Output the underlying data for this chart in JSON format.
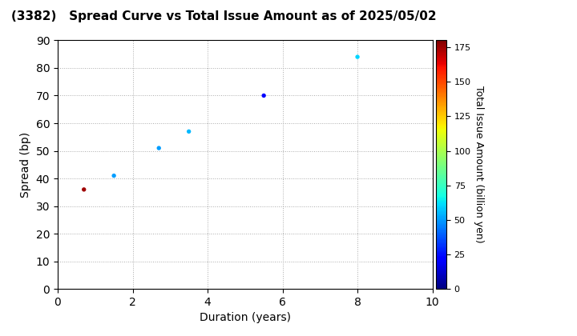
{
  "title": "(3382)   Spread Curve vs Total Issue Amount as of 2025/05/02",
  "xlabel": "Duration (years)",
  "ylabel": "Spread (bp)",
  "colorbar_label": "Total Issue Amount (billion yen)",
  "xlim": [
    0,
    10
  ],
  "ylim": [
    0,
    90
  ],
  "xticks": [
    0,
    2,
    4,
    6,
    8,
    10
  ],
  "yticks": [
    0,
    10,
    20,
    30,
    40,
    50,
    60,
    70,
    80,
    90
  ],
  "colorbar_ticks": [
    0,
    25,
    50,
    75,
    100,
    125,
    150,
    175
  ],
  "colorbar_vmin": 0,
  "colorbar_vmax": 180,
  "points": [
    {
      "duration": 0.7,
      "spread": 36,
      "amount": 175
    },
    {
      "duration": 1.5,
      "spread": 41,
      "amount": 50
    },
    {
      "duration": 2.7,
      "spread": 51,
      "amount": 50
    },
    {
      "duration": 3.5,
      "spread": 57,
      "amount": 55
    },
    {
      "duration": 5.5,
      "spread": 70,
      "amount": 20
    },
    {
      "duration": 8.0,
      "spread": 84,
      "amount": 60
    }
  ],
  "marker_size": 15,
  "colormap": "jet",
  "background_color": "#ffffff",
  "grid_color": "#aaaaaa",
  "grid_linestyle": "dotted",
  "title_fontsize": 11,
  "axis_fontsize": 10,
  "colorbar_fontsize": 9,
  "colorbar_tick_fontsize": 8
}
